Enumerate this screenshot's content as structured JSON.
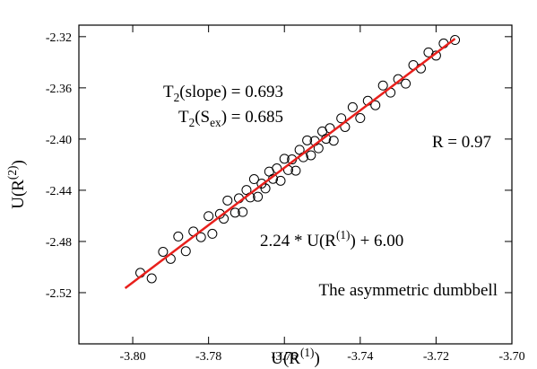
{
  "chart_data": {
    "type": "scatter",
    "xlabel": [
      {
        "text": "U(R"
      },
      {
        "text": "(1)",
        "shift": "super"
      },
      {
        "text": ")"
      }
    ],
    "ylabel": [
      {
        "text": "U(R"
      },
      {
        "text": "(2)",
        "shift": "super"
      },
      {
        "text": ")"
      }
    ],
    "annotations": [
      [
        {
          "text": "T"
        },
        {
          "text": "2",
          "shift": "sub"
        },
        {
          "text": "(slope) = 0.693"
        }
      ],
      [
        {
          "text": "T"
        },
        {
          "text": "2",
          "shift": "sub"
        },
        {
          "text": "(S"
        },
        {
          "text": "ex",
          "shift": "sub"
        },
        {
          "text": ") = 0.685"
        }
      ],
      [
        {
          "text": "R = 0.97"
        }
      ],
      [
        {
          "text": "2.24 * U(R"
        },
        {
          "text": "(1)",
          "shift": "super"
        },
        {
          "text": ") + 6.00"
        }
      ],
      [
        {
          "text": "The asymmetric dumbbell"
        }
      ]
    ],
    "xlim": [
      -3.8142,
      -3.7
    ],
    "ylim": [
      -2.56,
      -2.311
    ],
    "xticks": [
      {
        "value": -3.8,
        "label": "-3.80"
      },
      -3.78,
      -3.76,
      -3.74,
      -3.72,
      {
        "value": -3.7,
        "label": "-3.70"
      }
    ],
    "yticks": [
      -2.32,
      -2.36,
      {
        "value": -2.4,
        "label": "-2.40"
      },
      -2.44,
      -2.48,
      -2.52
    ],
    "series": [
      {
        "color": "#000000",
        "marker": "circle",
        "x": [
          -3.798,
          -3.795,
          -3.792,
          -3.79,
          -3.788,
          -3.786,
          -3.784,
          -3.782,
          -3.78,
          -3.779,
          -3.777,
          -3.776,
          -3.775,
          -3.773,
          -3.772,
          -3.771,
          -3.77,
          -3.769,
          -3.768,
          -3.767,
          -3.766,
          -3.765,
          -3.764,
          -3.763,
          -3.762,
          -3.761,
          -3.76,
          -3.759,
          -3.758,
          -3.757,
          -3.756,
          -3.755,
          -3.754,
          -3.753,
          -3.752,
          -3.751,
          -3.75,
          -3.749,
          -3.748,
          -3.747,
          -3.745,
          -3.744,
          -3.742,
          -3.74,
          -3.738,
          -3.736,
          -3.734,
          -3.732,
          -3.73,
          -3.728,
          -3.726,
          -3.724,
          -3.722,
          -3.72,
          -3.718,
          -3.715
        ],
        "values": [
          -2.5045,
          -2.5088,
          -2.4881,
          -2.4936,
          -2.4761,
          -2.4876,
          -2.4722,
          -2.4767,
          -2.4602,
          -2.474,
          -2.4585,
          -2.4622,
          -2.448,
          -2.4575,
          -2.4463,
          -2.457,
          -2.4398,
          -2.4456,
          -2.4313,
          -2.4451,
          -2.4348,
          -2.4386,
          -2.4254,
          -2.4311,
          -2.4229,
          -2.4326,
          -2.4154,
          -2.4242,
          -2.4159,
          -2.4247,
          -2.4084,
          -2.4142,
          -2.401,
          -2.4127,
          -2.4015,
          -2.4072,
          -2.394,
          -2.3998,
          -2.3915,
          -2.4013,
          -2.3838,
          -2.3906,
          -2.3751,
          -2.3836,
          -2.3701,
          -2.3736,
          -2.3582,
          -2.3637,
          -2.3532,
          -2.3567,
          -2.3422,
          -2.3448,
          -2.3323,
          -2.3348,
          -2.3253,
          -2.3226
        ]
      },
      {
        "color": "#e8201c",
        "marker": "line",
        "x": [
          -3.802,
          -3.715
        ],
        "values": [
          -2.5165,
          -2.3216
        ]
      }
    ]
  }
}
